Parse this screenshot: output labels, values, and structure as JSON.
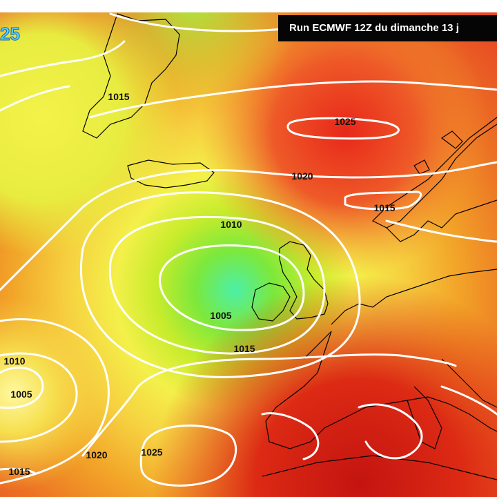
{
  "header": {
    "run_title": "Run ECMWF 12Z du dimanche 13 j",
    "scale_value": "25"
  },
  "map": {
    "isobar_labels": [
      "1015",
      "1025",
      "1020",
      "1015",
      "1010",
      "1005",
      "1015",
      "1010",
      "1005",
      "1020",
      "1025",
      "1015"
    ],
    "colors": {
      "isobar": "#ffffff",
      "coast": "#000000",
      "low_center": "#4cf0a8",
      "high_center": "#e82818"
    }
  }
}
